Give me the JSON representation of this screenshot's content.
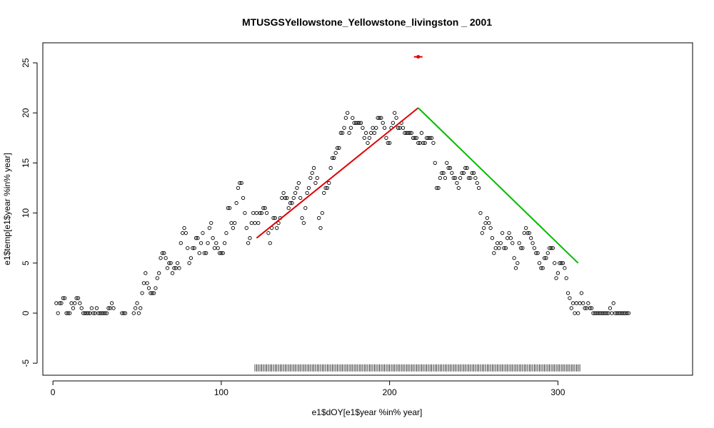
{
  "chart_data": {
    "type": "scatter",
    "title": "MTUSGSYellowstone_Yellowstone_livingston _ 2001",
    "xlabel": "e1$dOY[e1$year %in% year]",
    "ylabel": "e1$temp[e1$year %in% year]",
    "xlim": [
      -6,
      380
    ],
    "ylim": [
      -6.2,
      27
    ],
    "x_ticks": [
      0,
      100,
      200,
      300
    ],
    "y_ticks": [
      -5,
      0,
      5,
      10,
      15,
      20,
      25
    ],
    "grid": false,
    "points": [
      [
        2,
        1
      ],
      [
        3,
        0
      ],
      [
        4,
        1
      ],
      [
        5,
        1
      ],
      [
        6,
        1.5
      ],
      [
        7,
        1.5
      ],
      [
        8,
        0
      ],
      [
        9,
        0
      ],
      [
        10,
        0
      ],
      [
        11,
        1
      ],
      [
        12,
        0.5
      ],
      [
        13,
        1
      ],
      [
        14,
        1.5
      ],
      [
        15,
        1.5
      ],
      [
        16,
        1
      ],
      [
        17,
        0.5
      ],
      [
        18,
        0
      ],
      [
        19,
        0
      ],
      [
        20,
        0
      ],
      [
        21,
        0
      ],
      [
        22,
        0
      ],
      [
        23,
        0.5
      ],
      [
        24,
        0
      ],
      [
        25,
        0
      ],
      [
        26,
        0.5
      ],
      [
        27,
        0
      ],
      [
        28,
        0
      ],
      [
        29,
        0
      ],
      [
        30,
        0
      ],
      [
        31,
        0
      ],
      [
        32,
        0
      ],
      [
        33,
        0.5
      ],
      [
        34,
        0.5
      ],
      [
        35,
        1
      ],
      [
        36,
        0.5
      ],
      [
        41,
        0
      ],
      [
        42,
        0
      ],
      [
        43,
        0
      ],
      [
        48,
        0
      ],
      [
        49,
        0.5
      ],
      [
        50,
        1
      ],
      [
        51,
        0
      ],
      [
        52,
        0.5
      ],
      [
        53,
        2
      ],
      [
        54,
        3
      ],
      [
        55,
        4
      ],
      [
        56,
        3
      ],
      [
        57,
        2.5
      ],
      [
        58,
        2
      ],
      [
        59,
        2
      ],
      [
        60,
        2
      ],
      [
        61,
        2.5
      ],
      [
        62,
        3.5
      ],
      [
        63,
        4
      ],
      [
        64,
        5.5
      ],
      [
        65,
        6
      ],
      [
        66,
        6
      ],
      [
        67,
        5.5
      ],
      [
        68,
        4.5
      ],
      [
        69,
        5
      ],
      [
        70,
        5
      ],
      [
        71,
        4
      ],
      [
        72,
        4.5
      ],
      [
        73,
        4.5
      ],
      [
        74,
        5
      ],
      [
        75,
        4.5
      ],
      [
        76,
        7
      ],
      [
        77,
        8
      ],
      [
        78,
        8.5
      ],
      [
        79,
        8
      ],
      [
        80,
        6.5
      ],
      [
        81,
        5
      ],
      [
        82,
        5.5
      ],
      [
        83,
        6.5
      ],
      [
        84,
        6.5
      ],
      [
        85,
        7.5
      ],
      [
        86,
        7.5
      ],
      [
        87,
        6
      ],
      [
        88,
        7
      ],
      [
        89,
        8
      ],
      [
        90,
        6
      ],
      [
        91,
        6
      ],
      [
        92,
        7
      ],
      [
        93,
        8.5
      ],
      [
        94,
        9
      ],
      [
        95,
        7.5
      ],
      [
        96,
        6.5
      ],
      [
        97,
        7
      ],
      [
        98,
        6.5
      ],
      [
        99,
        6
      ],
      [
        100,
        6
      ],
      [
        101,
        6
      ],
      [
        102,
        7
      ],
      [
        103,
        8
      ],
      [
        104,
        10.5
      ],
      [
        105,
        10.5
      ],
      [
        106,
        9
      ],
      [
        107,
        8.5
      ],
      [
        108,
        9
      ],
      [
        109,
        11
      ],
      [
        110,
        12.5
      ],
      [
        111,
        13
      ],
      [
        112,
        13
      ],
      [
        113,
        11.5
      ],
      [
        114,
        10
      ],
      [
        115,
        8.5
      ],
      [
        116,
        7
      ],
      [
        117,
        7.5
      ],
      [
        118,
        9
      ],
      [
        119,
        10
      ],
      [
        120,
        9
      ],
      [
        121,
        10
      ],
      [
        122,
        9
      ],
      [
        123,
        10
      ],
      [
        124,
        10
      ],
      [
        125,
        10.5
      ],
      [
        126,
        10.5
      ],
      [
        127,
        10
      ],
      [
        128,
        8
      ],
      [
        129,
        7
      ],
      [
        130,
        8.5
      ],
      [
        131,
        9.5
      ],
      [
        132,
        9.5
      ],
      [
        133,
        8.5
      ],
      [
        134,
        9
      ],
      [
        135,
        9.5
      ],
      [
        136,
        11.5
      ],
      [
        137,
        12
      ],
      [
        138,
        11.5
      ],
      [
        139,
        11.5
      ],
      [
        140,
        10.5
      ],
      [
        141,
        11
      ],
      [
        142,
        11
      ],
      [
        143,
        11.5
      ],
      [
        144,
        12
      ],
      [
        145,
        12.5
      ],
      [
        146,
        13
      ],
      [
        147,
        11.5
      ],
      [
        148,
        9.5
      ],
      [
        149,
        9
      ],
      [
        150,
        10.5
      ],
      [
        151,
        12
      ],
      [
        152,
        12.5
      ],
      [
        153,
        13.5
      ],
      [
        154,
        14
      ],
      [
        155,
        14.5
      ],
      [
        156,
        13
      ],
      [
        157,
        13.5
      ],
      [
        158,
        9.5
      ],
      [
        159,
        8.5
      ],
      [
        160,
        10
      ],
      [
        161,
        12
      ],
      [
        162,
        12.5
      ],
      [
        163,
        12.5
      ],
      [
        164,
        13
      ],
      [
        165,
        14.5
      ],
      [
        166,
        15.5
      ],
      [
        167,
        15.5
      ],
      [
        168,
        16
      ],
      [
        169,
        16.5
      ],
      [
        170,
        16.5
      ],
      [
        171,
        18
      ],
      [
        172,
        18
      ],
      [
        173,
        18.5
      ],
      [
        174,
        19.5
      ],
      [
        175,
        20
      ],
      [
        176,
        18
      ],
      [
        177,
        18.5
      ],
      [
        178,
        19.5
      ],
      [
        179,
        19
      ],
      [
        180,
        19
      ],
      [
        181,
        19
      ],
      [
        182,
        19
      ],
      [
        183,
        19
      ],
      [
        184,
        18.5
      ],
      [
        185,
        17.5
      ],
      [
        186,
        18
      ],
      [
        187,
        17
      ],
      [
        188,
        17.5
      ],
      [
        189,
        18
      ],
      [
        190,
        18.5
      ],
      [
        191,
        18
      ],
      [
        192,
        18.5
      ],
      [
        193,
        19.5
      ],
      [
        194,
        19.5
      ],
      [
        195,
        19.5
      ],
      [
        196,
        19
      ],
      [
        197,
        18.5
      ],
      [
        198,
        17.5
      ],
      [
        199,
        17
      ],
      [
        200,
        17
      ],
      [
        201,
        18.5
      ],
      [
        202,
        19
      ],
      [
        203,
        20
      ],
      [
        204,
        19.5
      ],
      [
        205,
        18.5
      ],
      [
        206,
        18.5
      ],
      [
        207,
        19
      ],
      [
        208,
        18.5
      ],
      [
        209,
        18
      ],
      [
        210,
        18
      ],
      [
        211,
        18
      ],
      [
        212,
        18
      ],
      [
        213,
        18
      ],
      [
        214,
        17.5
      ],
      [
        215,
        17.5
      ],
      [
        216,
        17.5
      ],
      [
        217,
        17
      ],
      [
        218,
        17
      ],
      [
        219,
        18
      ],
      [
        220,
        17
      ],
      [
        221,
        17
      ],
      [
        222,
        17.5
      ],
      [
        223,
        17.5
      ],
      [
        224,
        17.5
      ],
      [
        225,
        17.5
      ],
      [
        226,
        17
      ],
      [
        227,
        15
      ],
      [
        228,
        12.5
      ],
      [
        229,
        12.5
      ],
      [
        230,
        13.5
      ],
      [
        231,
        14
      ],
      [
        232,
        14
      ],
      [
        233,
        13.5
      ],
      [
        234,
        15
      ],
      [
        235,
        14.5
      ],
      [
        236,
        14.5
      ],
      [
        237,
        14
      ],
      [
        238,
        13.5
      ],
      [
        239,
        13.5
      ],
      [
        240,
        13
      ],
      [
        241,
        12.5
      ],
      [
        242,
        13.5
      ],
      [
        243,
        14
      ],
      [
        244,
        14
      ],
      [
        245,
        14.5
      ],
      [
        246,
        14.5
      ],
      [
        247,
        13.5
      ],
      [
        248,
        13.5
      ],
      [
        249,
        14
      ],
      [
        250,
        14
      ],
      [
        251,
        13.5
      ],
      [
        252,
        13
      ],
      [
        253,
        12.5
      ],
      [
        254,
        10
      ],
      [
        255,
        8
      ],
      [
        256,
        8.5
      ],
      [
        257,
        9
      ],
      [
        258,
        9.5
      ],
      [
        259,
        9
      ],
      [
        260,
        8.5
      ],
      [
        261,
        7.5
      ],
      [
        262,
        6
      ],
      [
        263,
        6.5
      ],
      [
        264,
        7
      ],
      [
        265,
        6.5
      ],
      [
        266,
        7
      ],
      [
        267,
        8
      ],
      [
        268,
        6.5
      ],
      [
        269,
        6.5
      ],
      [
        270,
        7.5
      ],
      [
        271,
        8
      ],
      [
        272,
        7.5
      ],
      [
        273,
        7
      ],
      [
        274,
        5.5
      ],
      [
        275,
        4.5
      ],
      [
        276,
        5
      ],
      [
        277,
        7
      ],
      [
        278,
        6.5
      ],
      [
        279,
        6.5
      ],
      [
        280,
        8
      ],
      [
        281,
        8.5
      ],
      [
        282,
        8
      ],
      [
        283,
        8
      ],
      [
        284,
        7.5
      ],
      [
        285,
        7
      ],
      [
        286,
        6.5
      ],
      [
        287,
        6
      ],
      [
        288,
        6
      ],
      [
        289,
        5
      ],
      [
        290,
        4.5
      ],
      [
        291,
        4.5
      ],
      [
        292,
        5.5
      ],
      [
        293,
        5.5
      ],
      [
        294,
        6
      ],
      [
        295,
        6.5
      ],
      [
        296,
        6.5
      ],
      [
        297,
        6.5
      ],
      [
        298,
        5
      ],
      [
        299,
        3.5
      ],
      [
        300,
        4
      ],
      [
        301,
        5
      ],
      [
        302,
        5
      ],
      [
        303,
        5
      ],
      [
        304,
        4.5
      ],
      [
        305,
        3.5
      ],
      [
        306,
        2
      ],
      [
        307,
        1.5
      ],
      [
        308,
        0.5
      ],
      [
        309,
        1
      ],
      [
        310,
        0
      ],
      [
        311,
        1
      ],
      [
        312,
        0
      ],
      [
        313,
        1
      ],
      [
        314,
        2
      ],
      [
        315,
        1
      ],
      [
        316,
        0.5
      ],
      [
        317,
        0.5
      ],
      [
        318,
        1
      ],
      [
        319,
        0.5
      ],
      [
        320,
        0.5
      ],
      [
        321,
        0
      ],
      [
        322,
        0
      ],
      [
        323,
        0
      ],
      [
        324,
        0
      ],
      [
        325,
        0
      ],
      [
        326,
        0
      ],
      [
        327,
        0
      ],
      [
        328,
        0
      ],
      [
        329,
        0
      ],
      [
        330,
        0
      ],
      [
        331,
        0.5
      ],
      [
        332,
        0
      ],
      [
        333,
        1
      ],
      [
        334,
        0
      ],
      [
        335,
        0
      ],
      [
        336,
        0
      ],
      [
        337,
        0
      ],
      [
        338,
        0
      ],
      [
        339,
        0
      ],
      [
        340,
        0
      ],
      [
        341,
        0
      ],
      [
        342,
        0
      ]
    ],
    "lines": [
      {
        "color": "#e00000",
        "from": [
          121,
          7.5
        ],
        "to": [
          217,
          20.5
        ]
      },
      {
        "color": "#00bb00",
        "from": [
          217,
          20.5
        ],
        "to": [
          312,
          5
        ]
      }
    ],
    "marker": {
      "color": "#e00000",
      "x": 217,
      "y": 25.6
    },
    "rug": {
      "from": 120,
      "to": 313,
      "y": -5.4
    }
  }
}
